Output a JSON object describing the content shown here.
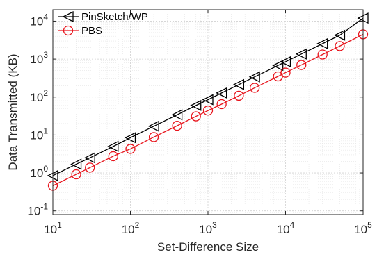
{
  "chart_data": {
    "type": "line",
    "xlabel": "Set-Difference Size",
    "ylabel": "Data Transmitted (KB)",
    "xscale": "log",
    "yscale": "log",
    "xlim": [
      10,
      100000
    ],
    "ylim": [
      0.08,
      20000
    ],
    "x_ticks": [
      {
        "base": "10",
        "exp": "1"
      },
      {
        "base": "10",
        "exp": "2"
      },
      {
        "base": "10",
        "exp": "3"
      },
      {
        "base": "10",
        "exp": "4"
      },
      {
        "base": "10",
        "exp": "5"
      }
    ],
    "x_tick_values": [
      10,
      100,
      1000,
      10000,
      100000
    ],
    "y_ticks": [
      {
        "base": "10",
        "exp": "-1"
      },
      {
        "base": "10",
        "exp": "0"
      },
      {
        "base": "10",
        "exp": "1"
      },
      {
        "base": "10",
        "exp": "2"
      },
      {
        "base": "10",
        "exp": "3"
      },
      {
        "base": "10",
        "exp": "4"
      }
    ],
    "y_tick_values": [
      0.1,
      1,
      10,
      100,
      1000,
      10000
    ],
    "grid": true,
    "legend_position": "top-left",
    "x": [
      10,
      20,
      30,
      60,
      100,
      200,
      400,
      700,
      1000,
      1500,
      2500,
      4000,
      8000,
      10000,
      16000,
      30000,
      50000,
      100000
    ],
    "series": [
      {
        "name": "PinSketch/WP",
        "color": "#000000",
        "marker": "triangle-left",
        "values": [
          0.85,
          1.7,
          2.5,
          5.0,
          8.5,
          17,
          34,
          60,
          85,
          128,
          213,
          340,
          680,
          850,
          1360,
          2550,
          4250,
          12000
        ]
      },
      {
        "name": "PBS",
        "color": "#e8141c",
        "marker": "circle",
        "values": [
          0.46,
          0.92,
          1.38,
          2.76,
          4.3,
          8.8,
          17.5,
          31,
          44,
          65,
          108,
          175,
          350,
          440,
          700,
          1320,
          2200,
          4500
        ]
      }
    ]
  }
}
